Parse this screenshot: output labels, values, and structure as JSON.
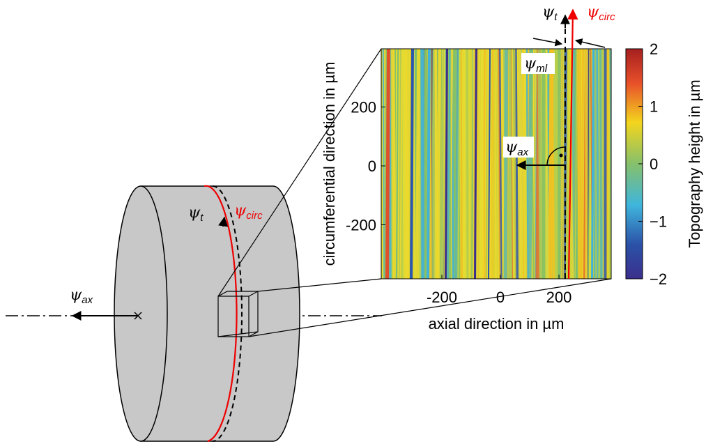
{
  "diagram": {
    "cylinder_labels": {
      "psi_t": {
        "symbol": "ψ",
        "sub": "t"
      },
      "psi_circ": {
        "symbol": "ψ",
        "sub": "circ"
      },
      "psi_ax": {
        "symbol": "ψ",
        "sub": "ax"
      }
    },
    "map_labels": {
      "psi_t": {
        "symbol": "ψ",
        "sub": "t"
      },
      "psi_circ": {
        "symbol": "ψ",
        "sub": "circ"
      },
      "psi_ml": {
        "symbol": "ψ",
        "sub": "ml"
      },
      "psi_ax": {
        "symbol": "ψ",
        "sub": "ax"
      }
    },
    "topography": {
      "x_label": "axial direction in µm",
      "y_label": "circumferential direction in µm",
      "xticks": [
        -200,
        0,
        200
      ],
      "yticks": [
        -200,
        0,
        200
      ],
      "colorbar_label": "Topography height in µm",
      "colorbar_ticks": [
        {
          "value": -2,
          "label": "−2"
        },
        {
          "value": -1,
          "label": "−1"
        },
        0,
        1,
        2
      ]
    }
  }
}
